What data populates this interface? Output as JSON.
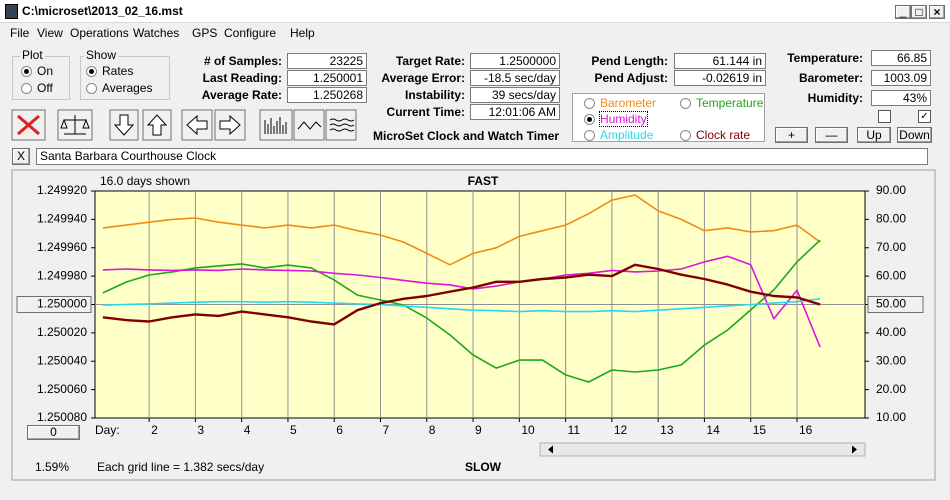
{
  "window_title": "C:\\microset\\2013_02_16.mst",
  "menu": [
    "File",
    "View",
    "Operations",
    "Watches",
    "GPS",
    "Configure",
    "Help"
  ],
  "plot": {
    "label": "Plot",
    "options": [
      "On",
      "Off"
    ],
    "selected": 0
  },
  "show": {
    "label": "Show",
    "options": [
      "Rates",
      "Averages"
    ],
    "selected": 0
  },
  "fields": [
    {
      "label": "# of Samples:",
      "value": "23225"
    },
    {
      "label": "Last Reading:",
      "value": "1.250001"
    },
    {
      "label": "Average Rate:",
      "value": "1.250268"
    },
    {
      "label": "Target Rate:",
      "value": "1.2500000"
    },
    {
      "label": "Average Error:",
      "value": "-18.5 sec/day"
    },
    {
      "label": "Instability:",
      "value": "39 secs/day"
    },
    {
      "label": "Current Time:",
      "value": "12:01:06 AM"
    },
    {
      "label": "Pend Length:",
      "value": "61.144 in"
    },
    {
      "label": "Pend Adjust:",
      "value": "-0.02619 in"
    },
    {
      "label": "Temperature:",
      "value": "66.85"
    },
    {
      "label": "Barometer:",
      "value": "1003.09"
    },
    {
      "label": "Humidity:",
      "value": "43%"
    }
  ],
  "app_title": "MicroSet Clock and Watch Timer",
  "buttons": [
    "+",
    "—",
    "Up",
    "Down"
  ],
  "checkboxes": [
    false,
    true
  ],
  "close_button": "X",
  "comment": "Santa Barbara Courthouse Clock",
  "offset_button": "0",
  "status": "1.59%",
  "chart_data": {
    "type": "line",
    "top_label": "FAST",
    "bottom_label": "SLOW",
    "days_shown": "16.0 days shown",
    "grid_note": "Each grid line = 1.382 secs/day",
    "x_label": "Day:",
    "x": [
      1,
      1.5,
      2,
      2.5,
      3,
      3.5,
      4,
      4.5,
      5,
      5.5,
      6,
      6.5,
      7,
      7.5,
      8,
      8.5,
      9,
      9.5,
      10,
      10.5,
      11,
      11.5,
      12,
      12.5,
      13,
      13.5,
      14,
      14.5,
      15,
      15.5,
      16,
      16.5
    ],
    "xlim": [
      0.83,
      17.47
    ],
    "xticks": [
      2,
      3,
      4,
      5,
      6,
      7,
      8,
      9,
      10,
      11,
      12,
      13,
      14,
      15,
      16
    ],
    "ylim": [
      1.25008,
      1.24992
    ],
    "yticks": [
      {
        "value": 1.24992,
        "label": "1.249920"
      },
      {
        "value": 1.24994,
        "label": "1.249940"
      },
      {
        "value": 1.24996,
        "label": "1.249960"
      },
      {
        "value": 1.24998,
        "label": "1.249980"
      },
      {
        "value": 1.25,
        "label": "1.250000"
      },
      {
        "value": 1.25002,
        "label": "1.250020"
      },
      {
        "value": 1.25004,
        "label": "1.250040"
      },
      {
        "value": 1.25006,
        "label": "1.250060"
      },
      {
        "value": 1.25008,
        "label": "1.250080"
      }
    ],
    "y2lim": [
      10,
      90
    ],
    "y2ticks": [
      {
        "value": 90,
        "label": "90.00"
      },
      {
        "value": 80,
        "label": "80.00"
      },
      {
        "value": 70,
        "label": "70.00"
      },
      {
        "value": 60,
        "label": "60.00"
      },
      {
        "value": 50,
        "label": "50.00"
      },
      {
        "value": 40,
        "label": "40.00"
      },
      {
        "value": 30,
        "label": "30.00"
      },
      {
        "value": 20,
        "label": "20.00"
      },
      {
        "value": 10,
        "label": "10.00"
      }
    ],
    "grid": true,
    "selected": 2,
    "series": [
      {
        "name": "Barometer",
        "color": "#f08c14",
        "axis": "y2",
        "values": [
          77,
          78,
          79,
          80,
          80.5,
          79,
          78,
          77,
          78,
          77,
          78,
          76,
          74.5,
          72,
          68,
          64,
          68,
          70,
          74,
          76,
          78,
          82,
          86.8,
          88.6,
          83,
          80,
          76,
          77,
          75.6,
          76,
          78,
          72
        ]
      },
      {
        "name": "Temperature",
        "color": "#1ca81c",
        "axis": "y2",
        "values": [
          54.1,
          57.9,
          60.4,
          61.5,
          62.9,
          63.6,
          64.3,
          62.9,
          63.9,
          62.9,
          58.6,
          53.3,
          51.6,
          49.8,
          45.2,
          39.3,
          32.2,
          27.6,
          30.4,
          30.4,
          25.2,
          22.7,
          26.9,
          26.2,
          26.9,
          28.7,
          35.7,
          41.0,
          48.1,
          55.1,
          65.0,
          72.7
        ]
      },
      {
        "name": "Humidity",
        "color": "#dc14dc",
        "axis": "y2",
        "values": [
          62.2,
          62.5,
          62.2,
          62,
          62.2,
          62,
          62.5,
          62.2,
          62,
          61.8,
          61,
          60.4,
          59.5,
          58.5,
          57.5,
          56.9,
          55.5,
          56.5,
          58,
          59,
          60.4,
          61,
          62,
          61.5,
          61.8,
          62.5,
          65,
          67,
          64,
          45,
          55,
          35
        ]
      },
      {
        "name": "Amplitude",
        "color": "#28d8f0",
        "axis": "y2",
        "values": [
          49.8,
          50,
          50.2,
          50.5,
          50.8,
          51,
          51,
          50.8,
          51,
          50.8,
          50.5,
          50.2,
          50,
          49.5,
          49,
          48.5,
          48,
          47.8,
          47.5,
          47.8,
          47.5,
          47.5,
          47.8,
          47.5,
          48,
          48.5,
          49,
          49.5,
          50,
          50.5,
          51,
          52
        ]
      },
      {
        "name": "Clock rate",
        "color": "#800000",
        "values": [
          1.250009,
          1.250011,
          1.250012,
          1.250009,
          1.250007,
          1.250008,
          1.250005,
          1.250007,
          1.250009,
          1.250012,
          1.250014,
          1.250004,
          1.249999,
          1.249996,
          1.249994,
          1.249991,
          1.249988,
          1.249984,
          1.249984,
          1.249982,
          1.249981,
          1.249979,
          1.24998,
          1.249972,
          1.249975,
          1.249979,
          1.249982,
          1.249986,
          1.249991,
          1.249994,
          1.249995,
          1.25
        ]
      }
    ]
  }
}
